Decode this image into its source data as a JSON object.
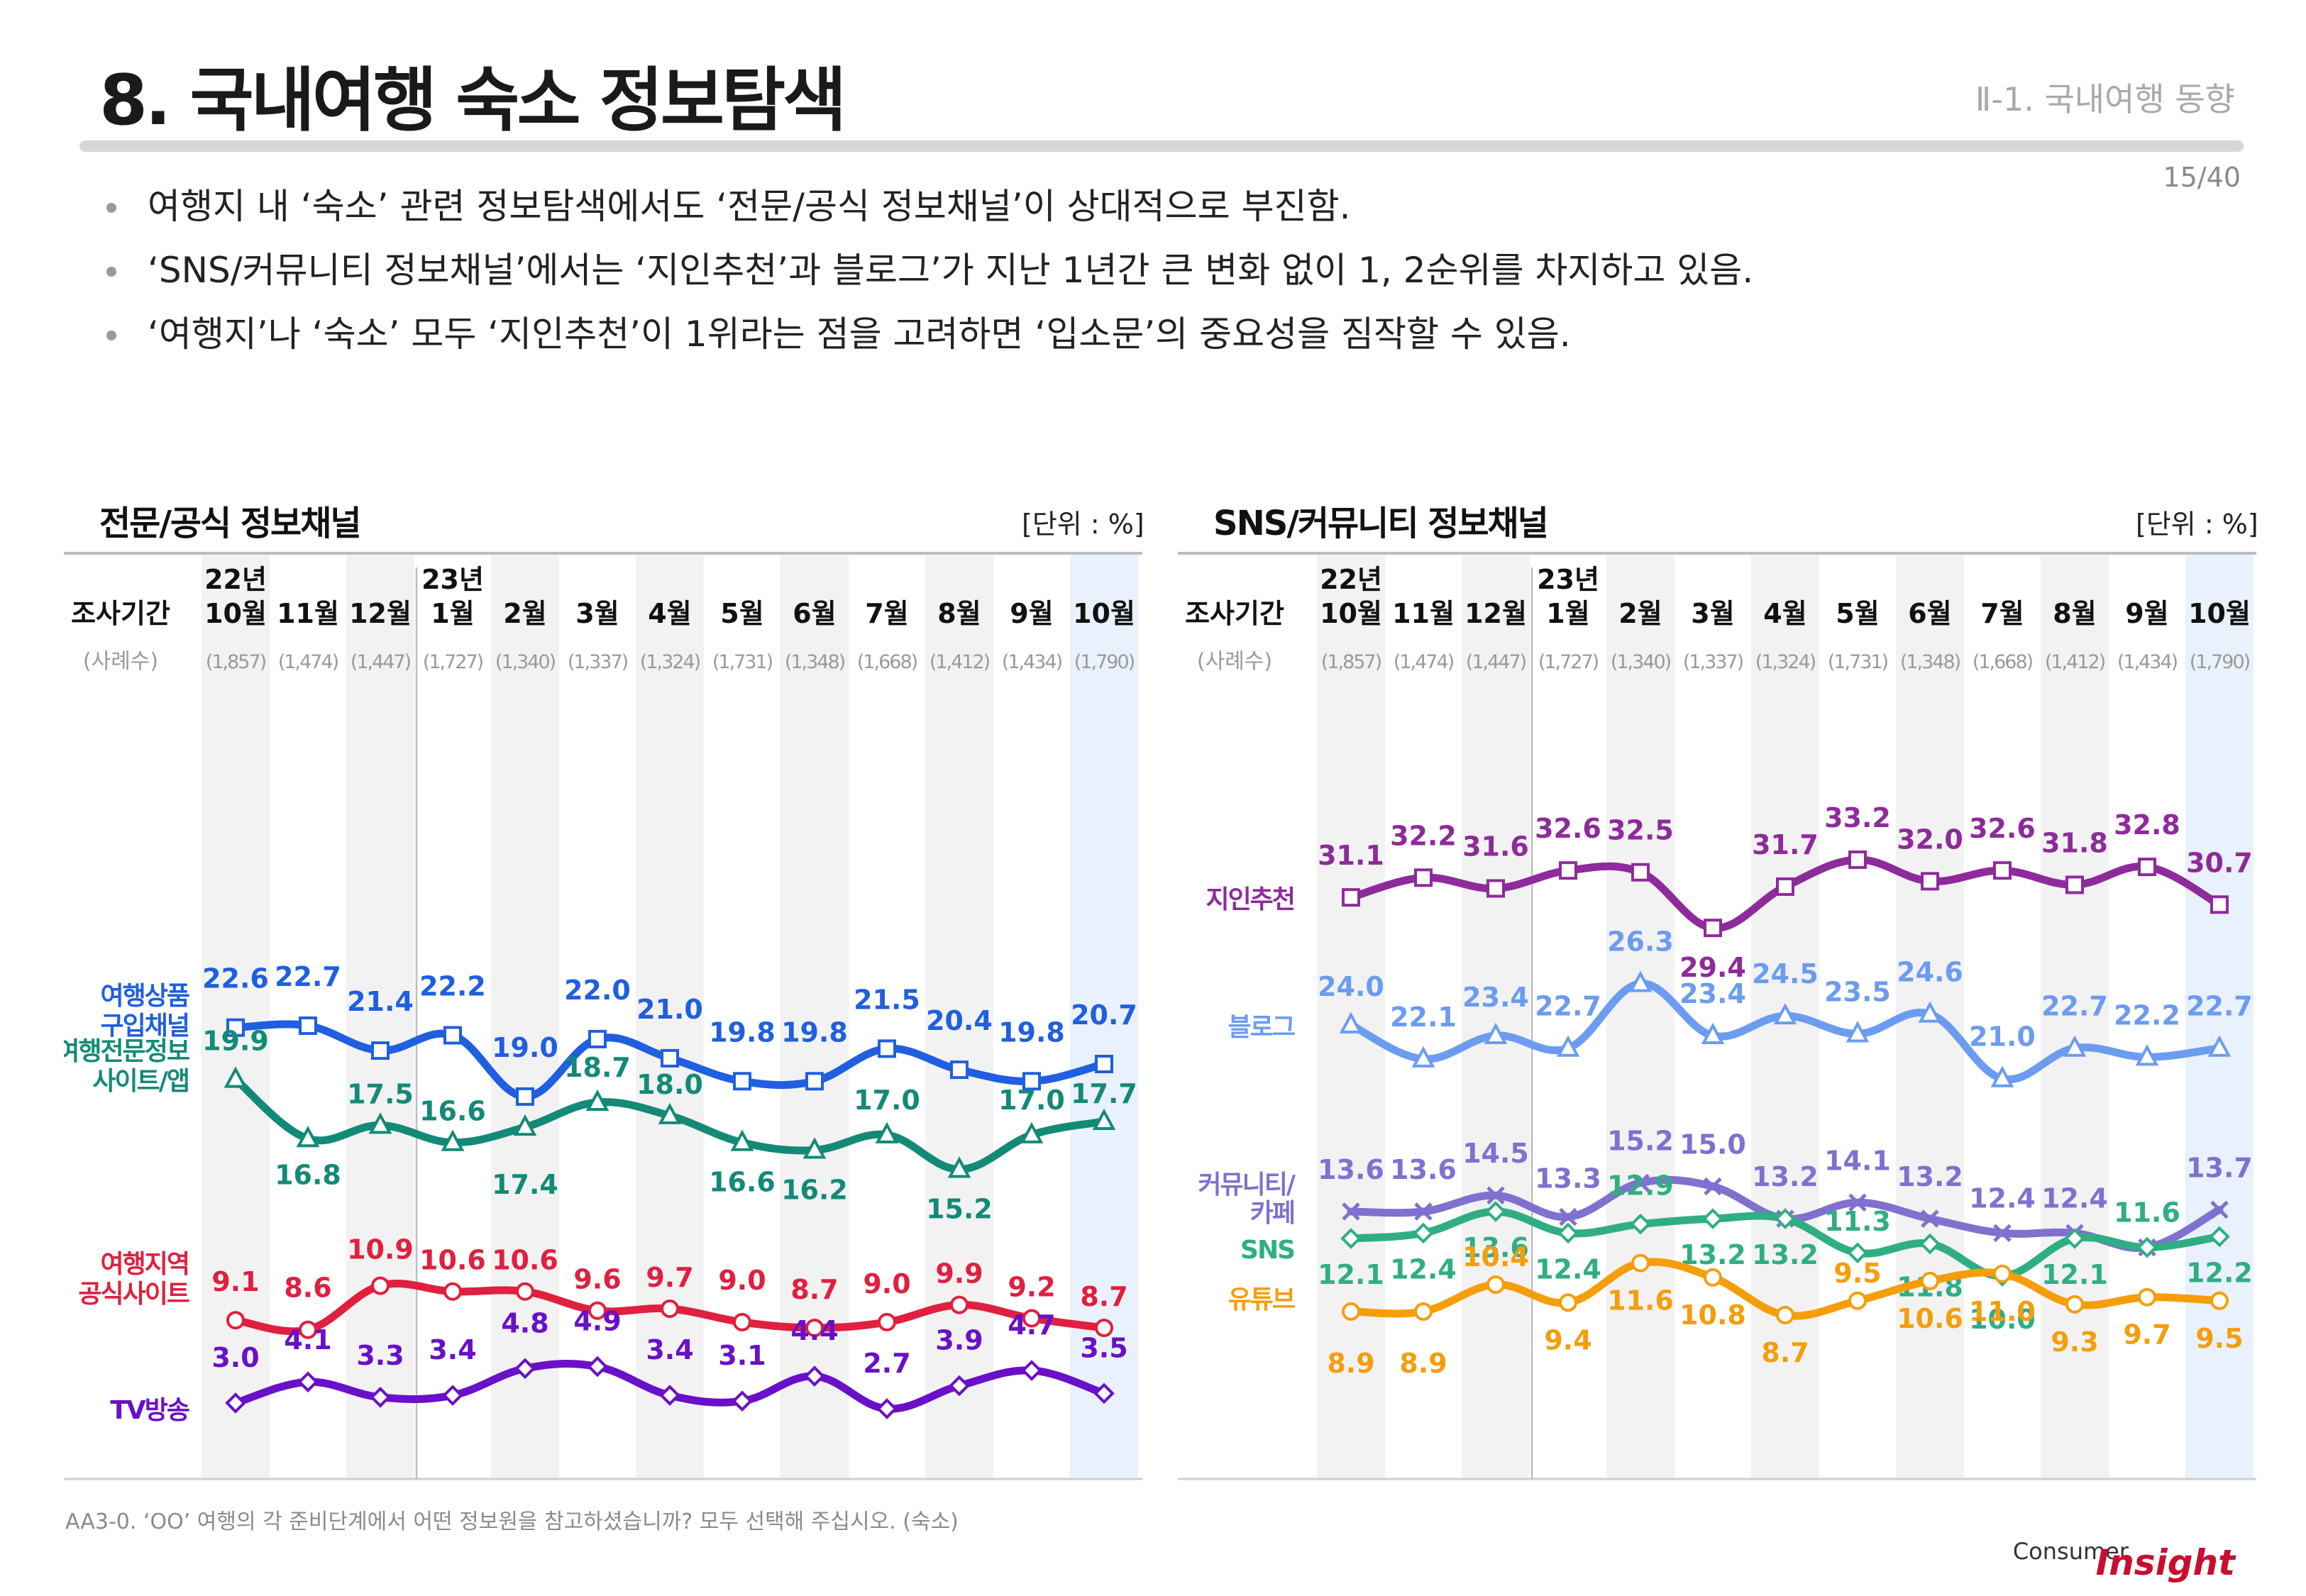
{
  "page": {
    "title": "8. 국내여행 숙소 정보탐색",
    "section": "Ⅱ-1. 국내여행 동향",
    "page_number": "15/40",
    "bullets": [
      "여행지 내 ‘숙소’ 관련 정보탐색에서도 ‘전문/공식 정보채널’이 상대적으로 부진함.",
      "‘SNS/커뮤니티 정보채널’에서는 ‘지인추천’과 블로그’가 지난 1년간 큰 변화 없이 1, 2순위를 차지하고 있음.",
      "‘여행지’나 ‘숙소’ 모두 ‘지인추천’이 1위라는 점을 고려하면 ‘입소문’의 중요성을 짐작할 수 있음."
    ],
    "footnote": "AA3-0. ‘OO’ 여행의 각 준비단계에서 어떤 정보원을 참고하셨습니까? 모두 선택해 주십시오. (숙소)",
    "brand_small": "Consumer",
    "brand_big": "Insight"
  },
  "chart_data": [
    {
      "type": "line",
      "title": "전문/공식 정보채널",
      "unit": "[단위 : %]",
      "header_label": "조사기간",
      "sample_label": "(사례수)",
      "year_labels": {
        "0": "22년",
        "3": "23년"
      },
      "categories": [
        "10월",
        "11월",
        "12월",
        "1월",
        "2월",
        "3월",
        "4월",
        "5월",
        "6월",
        "7월",
        "8월",
        "9월",
        "10월"
      ],
      "sample_sizes": [
        "(1,857)",
        "(1,474)",
        "(1,447)",
        "(1,727)",
        "(1,340)",
        "(1,337)",
        "(1,324)",
        "(1,731)",
        "(1,348)",
        "(1,668)",
        "(1,412)",
        "(1,434)",
        "(1,790)"
      ],
      "series": [
        {
          "name": "여행상품 구입채널",
          "label_lines": [
            "여행상품",
            "구입채널"
          ],
          "color": "#1f5fe0",
          "marker": "square",
          "values": [
            22.6,
            22.7,
            21.4,
            22.2,
            19.0,
            22.0,
            21.0,
            19.8,
            19.8,
            21.5,
            20.4,
            19.8,
            20.7
          ]
        },
        {
          "name": "여행전문정보 사이트/앱",
          "label_lines": [
            "여행전문정보",
            "사이트/앱"
          ],
          "color": "#138a78",
          "marker": "triangle",
          "values": [
            19.9,
            16.8,
            17.5,
            16.6,
            17.4,
            18.7,
            18.0,
            16.6,
            16.2,
            17.0,
            15.2,
            17.0,
            17.7
          ]
        },
        {
          "name": "여행지역 공식사이트",
          "label_lines": [
            "여행지역",
            "공식사이트"
          ],
          "color": "#e0203e",
          "marker": "circle",
          "values": [
            9.1,
            8.6,
            10.9,
            10.6,
            10.6,
            9.6,
            9.7,
            9.0,
            8.7,
            9.0,
            9.9,
            9.2,
            8.7
          ]
        },
        {
          "name": "TV방송",
          "label_lines": [
            "TV방송"
          ],
          "color": "#6a10c8",
          "marker": "diamond",
          "values": [
            3.0,
            4.1,
            3.3,
            3.4,
            4.8,
            4.9,
            3.4,
            3.1,
            4.4,
            2.7,
            3.9,
            4.7,
            3.5
          ]
        }
      ]
    },
    {
      "type": "line",
      "title": "SNS/커뮤니티 정보채널",
      "unit": "[단위 : %]",
      "header_label": "조사기간",
      "sample_label": "(사례수)",
      "year_labels": {
        "0": "22년",
        "3": "23년"
      },
      "categories": [
        "10월",
        "11월",
        "12월",
        "1월",
        "2월",
        "3월",
        "4월",
        "5월",
        "6월",
        "7월",
        "8월",
        "9월",
        "10월"
      ],
      "sample_sizes": [
        "(1,857)",
        "(1,474)",
        "(1,447)",
        "(1,727)",
        "(1,340)",
        "(1,337)",
        "(1,324)",
        "(1,731)",
        "(1,348)",
        "(1,668)",
        "(1,412)",
        "(1,434)",
        "(1,790)"
      ],
      "series": [
        {
          "name": "지인추천",
          "label_lines": [
            "지인추천"
          ],
          "color": "#8e2a9c",
          "marker": "square",
          "values": [
            31.1,
            32.2,
            31.6,
            32.6,
            32.5,
            29.4,
            31.7,
            33.2,
            32.0,
            32.6,
            31.8,
            32.8,
            30.7
          ]
        },
        {
          "name": "블로그",
          "label_lines": [
            "블로그"
          ],
          "color": "#6b9cf0",
          "marker": "triangle",
          "values": [
            24.0,
            22.1,
            23.4,
            22.7,
            26.3,
            23.4,
            24.5,
            23.5,
            24.6,
            21.0,
            22.7,
            22.2,
            22.7
          ]
        },
        {
          "name": "커뮤니티/카페",
          "label_lines": [
            "커뮤니티/",
            "카페"
          ],
          "color": "#8070d0",
          "marker": "x",
          "values": [
            13.6,
            13.6,
            14.5,
            13.3,
            15.2,
            15.0,
            13.2,
            14.1,
            13.2,
            12.4,
            12.4,
            11.6,
            13.7
          ]
        },
        {
          "name": "SNS",
          "label_lines": [
            "SNS"
          ],
          "color": "#2fae84",
          "marker": "diamond",
          "values": [
            12.1,
            12.4,
            13.6,
            12.4,
            12.9,
            13.2,
            13.2,
            11.3,
            11.8,
            10.0,
            12.1,
            11.6,
            12.2
          ]
        },
        {
          "name": "유튜브",
          "label_lines": [
            "유튜브"
          ],
          "color": "#f59e0b",
          "marker": "circle",
          "values": [
            8.9,
            8.9,
            10.4,
            9.4,
            11.6,
            10.8,
            8.7,
            9.5,
            10.6,
            11.0,
            9.3,
            9.7,
            9.5
          ]
        }
      ]
    }
  ]
}
